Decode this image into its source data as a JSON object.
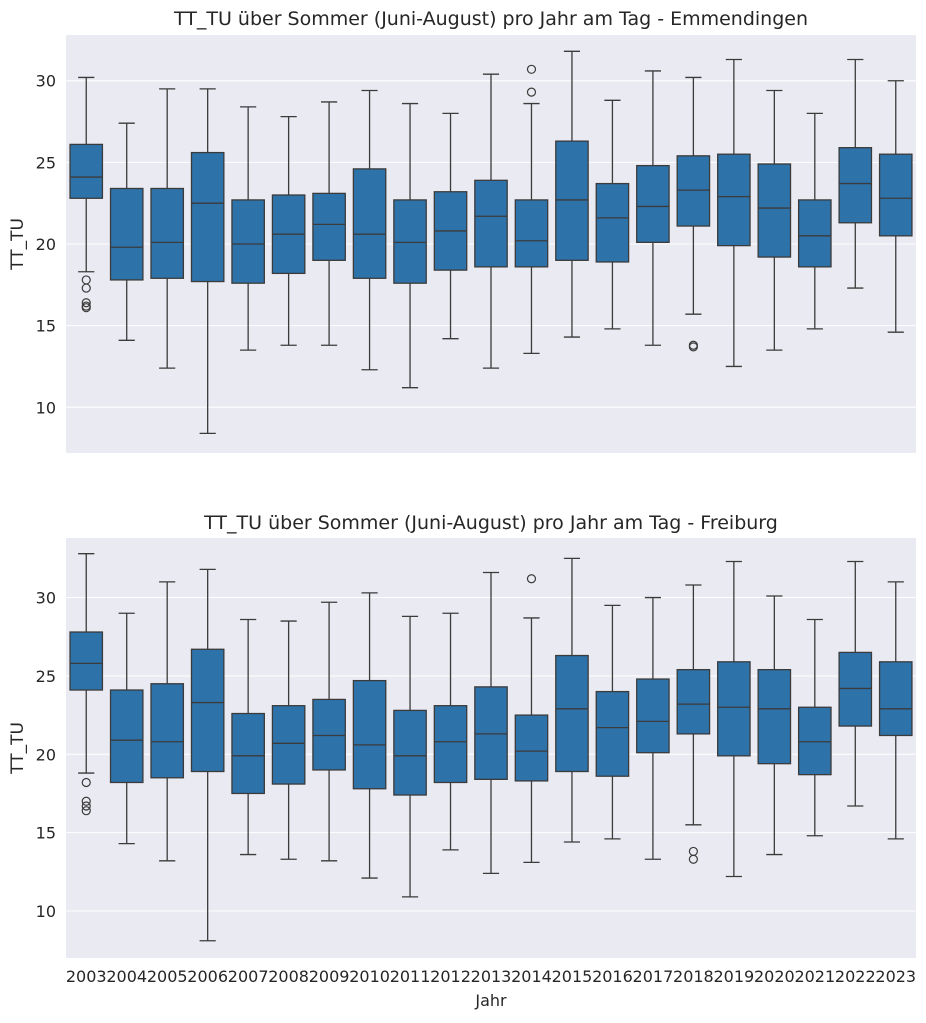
{
  "chart_data": [
    {
      "type": "box",
      "title": "TT_TU über Sommer (Juni-August) pro Jahr am Tag - Emmendingen",
      "xlabel": "",
      "ylabel": "TT_TU",
      "ylim": [
        7.2,
        32.8
      ],
      "yticks": [
        10,
        15,
        20,
        25,
        30
      ],
      "categories": [
        "2003",
        "2004",
        "2005",
        "2006",
        "2007",
        "2008",
        "2009",
        "2010",
        "2011",
        "2012",
        "2013",
        "2014",
        "2015",
        "2016",
        "2017",
        "2018",
        "2019",
        "2020",
        "2021",
        "2022",
        "2023"
      ],
      "boxes": [
        {
          "whislo": 18.3,
          "q1": 22.8,
          "med": 24.1,
          "q3": 26.1,
          "whishi": 30.2,
          "fliers": [
            17.8,
            17.3,
            16.4,
            16.2,
            16.1
          ]
        },
        {
          "whislo": 14.1,
          "q1": 17.8,
          "med": 19.8,
          "q3": 23.4,
          "whishi": 27.4,
          "fliers": []
        },
        {
          "whislo": 12.4,
          "q1": 17.9,
          "med": 20.1,
          "q3": 23.4,
          "whishi": 29.5,
          "fliers": []
        },
        {
          "whislo": 8.4,
          "q1": 17.7,
          "med": 22.5,
          "q3": 25.6,
          "whishi": 29.5,
          "fliers": []
        },
        {
          "whislo": 13.5,
          "q1": 17.6,
          "med": 20.0,
          "q3": 22.7,
          "whishi": 28.4,
          "fliers": []
        },
        {
          "whislo": 13.8,
          "q1": 18.2,
          "med": 20.6,
          "q3": 23.0,
          "whishi": 27.8,
          "fliers": []
        },
        {
          "whislo": 13.8,
          "q1": 19.0,
          "med": 21.2,
          "q3": 23.1,
          "whishi": 28.7,
          "fliers": []
        },
        {
          "whislo": 12.3,
          "q1": 17.9,
          "med": 20.6,
          "q3": 24.6,
          "whishi": 29.4,
          "fliers": []
        },
        {
          "whislo": 11.2,
          "q1": 17.6,
          "med": 20.1,
          "q3": 22.7,
          "whishi": 28.6,
          "fliers": []
        },
        {
          "whislo": 14.2,
          "q1": 18.4,
          "med": 20.8,
          "q3": 23.2,
          "whishi": 28.0,
          "fliers": []
        },
        {
          "whislo": 12.4,
          "q1": 18.6,
          "med": 21.7,
          "q3": 23.9,
          "whishi": 30.4,
          "fliers": []
        },
        {
          "whislo": 13.3,
          "q1": 18.6,
          "med": 20.2,
          "q3": 22.7,
          "whishi": 28.6,
          "fliers": [
            29.3,
            30.7
          ]
        },
        {
          "whislo": 14.3,
          "q1": 19.0,
          "med": 22.7,
          "q3": 26.3,
          "whishi": 31.8,
          "fliers": []
        },
        {
          "whislo": 14.8,
          "q1": 18.9,
          "med": 21.6,
          "q3": 23.7,
          "whishi": 28.8,
          "fliers": []
        },
        {
          "whislo": 13.8,
          "q1": 20.1,
          "med": 22.3,
          "q3": 24.8,
          "whishi": 30.6,
          "fliers": []
        },
        {
          "whislo": 15.7,
          "q1": 21.1,
          "med": 23.3,
          "q3": 25.4,
          "whishi": 30.2,
          "fliers": [
            13.8,
            13.7
          ]
        },
        {
          "whislo": 12.5,
          "q1": 19.9,
          "med": 22.9,
          "q3": 25.5,
          "whishi": 31.3,
          "fliers": []
        },
        {
          "whislo": 13.5,
          "q1": 19.2,
          "med": 22.2,
          "q3": 24.9,
          "whishi": 29.4,
          "fliers": []
        },
        {
          "whislo": 14.8,
          "q1": 18.6,
          "med": 20.5,
          "q3": 22.7,
          "whishi": 28.0,
          "fliers": []
        },
        {
          "whislo": 17.3,
          "q1": 21.3,
          "med": 23.7,
          "q3": 25.9,
          "whishi": 31.3,
          "fliers": []
        },
        {
          "whislo": 14.6,
          "q1": 20.5,
          "med": 22.8,
          "q3": 25.5,
          "whishi": 30.0,
          "fliers": []
        }
      ]
    },
    {
      "type": "box",
      "title": "TT_TU über Sommer (Juni-August) pro Jahr am Tag - Freiburg",
      "xlabel": "Jahr",
      "ylabel": "TT_TU",
      "ylim": [
        7.0,
        33.8
      ],
      "yticks": [
        10,
        15,
        20,
        25,
        30
      ],
      "categories": [
        "2003",
        "2004",
        "2005",
        "2006",
        "2007",
        "2008",
        "2009",
        "2010",
        "2011",
        "2012",
        "2013",
        "2014",
        "2015",
        "2016",
        "2017",
        "2018",
        "2019",
        "2020",
        "2021",
        "2022",
        "2023"
      ],
      "boxes": [
        {
          "whislo": 18.8,
          "q1": 24.1,
          "med": 25.8,
          "q3": 27.8,
          "whishi": 32.8,
          "fliers": [
            18.2,
            17.0,
            16.7,
            16.4
          ]
        },
        {
          "whislo": 14.3,
          "q1": 18.2,
          "med": 20.9,
          "q3": 24.1,
          "whishi": 29.0,
          "fliers": []
        },
        {
          "whislo": 13.2,
          "q1": 18.5,
          "med": 20.8,
          "q3": 24.5,
          "whishi": 31.0,
          "fliers": []
        },
        {
          "whislo": 8.1,
          "q1": 18.9,
          "med": 23.3,
          "q3": 26.7,
          "whishi": 31.8,
          "fliers": []
        },
        {
          "whislo": 13.6,
          "q1": 17.5,
          "med": 19.9,
          "q3": 22.6,
          "whishi": 28.6,
          "fliers": []
        },
        {
          "whislo": 13.3,
          "q1": 18.1,
          "med": 20.7,
          "q3": 23.1,
          "whishi": 28.5,
          "fliers": []
        },
        {
          "whislo": 13.2,
          "q1": 19.0,
          "med": 21.2,
          "q3": 23.5,
          "whishi": 29.7,
          "fliers": []
        },
        {
          "whislo": 12.1,
          "q1": 17.8,
          "med": 20.6,
          "q3": 24.7,
          "whishi": 30.3,
          "fliers": []
        },
        {
          "whislo": 10.9,
          "q1": 17.4,
          "med": 19.9,
          "q3": 22.8,
          "whishi": 28.8,
          "fliers": []
        },
        {
          "whislo": 13.9,
          "q1": 18.2,
          "med": 20.8,
          "q3": 23.1,
          "whishi": 29.0,
          "fliers": []
        },
        {
          "whislo": 12.4,
          "q1": 18.4,
          "med": 21.3,
          "q3": 24.3,
          "whishi": 31.6,
          "fliers": []
        },
        {
          "whislo": 13.1,
          "q1": 18.3,
          "med": 20.2,
          "q3": 22.5,
          "whishi": 28.7,
          "fliers": [
            31.2
          ]
        },
        {
          "whislo": 14.4,
          "q1": 18.9,
          "med": 22.9,
          "q3": 26.3,
          "whishi": 32.5,
          "fliers": []
        },
        {
          "whislo": 14.6,
          "q1": 18.6,
          "med": 21.7,
          "q3": 24.0,
          "whishi": 29.5,
          "fliers": []
        },
        {
          "whislo": 13.3,
          "q1": 20.1,
          "med": 22.1,
          "q3": 24.8,
          "whishi": 30.0,
          "fliers": []
        },
        {
          "whislo": 15.5,
          "q1": 21.3,
          "med": 23.2,
          "q3": 25.4,
          "whishi": 30.8,
          "fliers": [
            13.8,
            13.3
          ]
        },
        {
          "whislo": 12.2,
          "q1": 19.9,
          "med": 23.0,
          "q3": 25.9,
          "whishi": 32.3,
          "fliers": []
        },
        {
          "whislo": 13.6,
          "q1": 19.4,
          "med": 22.9,
          "q3": 25.4,
          "whishi": 30.1,
          "fliers": []
        },
        {
          "whislo": 14.8,
          "q1": 18.7,
          "med": 20.8,
          "q3": 23.0,
          "whishi": 28.6,
          "fliers": []
        },
        {
          "whislo": 16.7,
          "q1": 21.8,
          "med": 24.2,
          "q3": 26.5,
          "whishi": 32.3,
          "fliers": []
        },
        {
          "whislo": 14.6,
          "q1": 21.2,
          "med": 22.9,
          "q3": 25.9,
          "whishi": 31.0,
          "fliers": []
        }
      ]
    }
  ],
  "colors": {
    "box_fill": "#2e72aa",
    "line": "#3b3b3b",
    "plot_bg": "#eaeaf2",
    "grid": "#ffffff"
  }
}
